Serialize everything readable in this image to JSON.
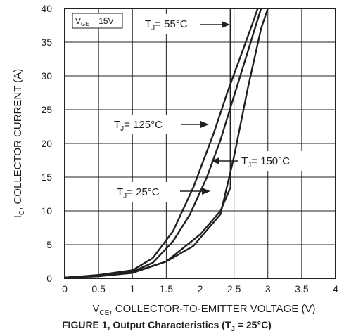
{
  "chart_data": {
    "type": "line",
    "xlim": [
      0,
      4
    ],
    "ylim": [
      0,
      40
    ],
    "x_ticks": [
      "0",
      "0.5",
      "1",
      "1.5",
      "2",
      "2.5",
      "3",
      "3.5",
      "4"
    ],
    "y_ticks": [
      "0",
      "5",
      "10",
      "15",
      "20",
      "25",
      "30",
      "35",
      "40"
    ],
    "grid": true,
    "xlabel": {
      "main": "V",
      "sub": "CE",
      "rest": ", COLLECTOR-TO-EMITTER VOLTAGE (V)"
    },
    "ylabel": {
      "main": "I",
      "sub": "C",
      "rest": ", COLLECTOR CURRENT (A)"
    },
    "condition_box": {
      "main": "V",
      "sub": "GE",
      "rest": " = 15V"
    },
    "series": [
      {
        "name": "T_J = 55°C",
        "label_main": "T",
        "label_sub": "J",
        "label_rest": "= 55°C",
        "points": [
          [
            0,
            0.1
          ],
          [
            0.5,
            0.3
          ],
          [
            1.0,
            0.8
          ],
          [
            1.5,
            2.5
          ],
          [
            2.0,
            6.5
          ],
          [
            2.3,
            10.0
          ],
          [
            2.45,
            13.5
          ],
          [
            2.45,
            20.0
          ],
          [
            2.45,
            30.0
          ],
          [
            2.45,
            40.0
          ]
        ]
      },
      {
        "name": "T_J = 125°C",
        "label_main": "T",
        "label_sub": "J",
        "label_rest": "= 125°C",
        "points": [
          [
            0,
            0.1
          ],
          [
            0.5,
            0.5
          ],
          [
            1.0,
            1.2
          ],
          [
            1.3,
            3.0
          ],
          [
            1.6,
            7.0
          ],
          [
            1.9,
            13.5
          ],
          [
            2.2,
            21.5
          ],
          [
            2.4,
            27.5
          ],
          [
            2.6,
            33.0
          ],
          [
            2.8,
            38.5
          ],
          [
            2.85,
            40.0
          ]
        ]
      },
      {
        "name": "T_J = 150°C",
        "label_main": "T",
        "label_sub": "J",
        "label_rest": "= 150°C",
        "points": [
          [
            0,
            0.1
          ],
          [
            0.5,
            0.4
          ],
          [
            1.0,
            0.9
          ],
          [
            1.5,
            2.5
          ],
          [
            1.9,
            4.8
          ],
          [
            2.3,
            9.5
          ],
          [
            2.5,
            18.0
          ],
          [
            2.7,
            28.0
          ],
          [
            2.9,
            37.0
          ],
          [
            3.0,
            40.0
          ]
        ]
      },
      {
        "name": "T_J = 25°C",
        "label_main": "T",
        "label_sub": "J",
        "label_rest": "= 25°C",
        "points": [
          [
            0,
            0.1
          ],
          [
            0.5,
            0.4
          ],
          [
            1.0,
            1.0
          ],
          [
            1.3,
            2.3
          ],
          [
            1.6,
            5.5
          ],
          [
            1.85,
            9.5
          ],
          [
            2.1,
            15.0
          ],
          [
            2.3,
            20.5
          ],
          [
            2.5,
            27.0
          ],
          [
            2.7,
            33.5
          ],
          [
            2.9,
            40.0
          ]
        ]
      }
    ]
  },
  "caption": {
    "prefix": "FIGURE 1,  Output  Characteristics (T",
    "sub": "J",
    "rest": " = 25°C)"
  }
}
